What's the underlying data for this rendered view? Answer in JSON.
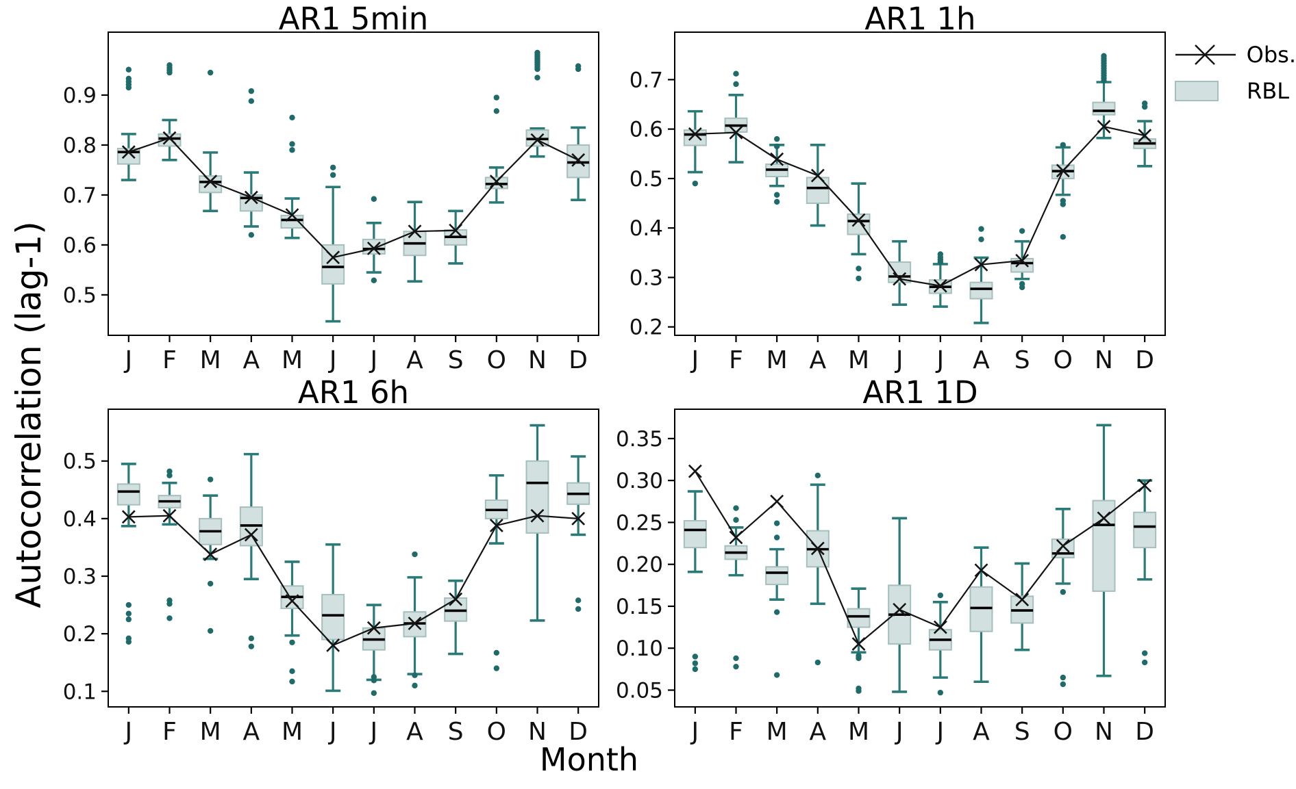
{
  "figure": {
    "ylabel": "Autocorrelation (lag-1)",
    "xlabel": "Month",
    "months": [
      "J",
      "F",
      "M",
      "A",
      "M",
      "J",
      "J",
      "A",
      "S",
      "O",
      "N",
      "D"
    ],
    "legend": [
      {
        "label": "Obs.",
        "marker": "x-line"
      },
      {
        "label": "RBL",
        "marker": "filled-box"
      }
    ]
  },
  "colors": {
    "teal": "#2a7a78",
    "outlier": "#1f6b69",
    "box_fill": "#d2e0df",
    "box_edge": "#a4bfbd",
    "median": "#000000",
    "obs": "#141414",
    "ink": "#111111"
  },
  "chart_data": [
    {
      "type": "boxplot+line",
      "title": "AR1 5min",
      "ylim": [
        0.419,
        1.026
      ],
      "yticks": [
        "0.5",
        "0.6",
        "0.7",
        "0.8",
        "0.9"
      ],
      "legend_series": [
        "Obs.",
        "RBL"
      ],
      "obs": [
        0.786,
        0.814,
        0.727,
        0.695,
        0.66,
        0.575,
        0.593,
        0.627,
        0.629,
        0.727,
        0.81,
        0.77
      ],
      "boxes": [
        {
          "lo": 0.73,
          "q1": 0.762,
          "med": 0.786,
          "q3": 0.793,
          "hi": 0.822,
          "outliers": [
            0.915,
            0.921,
            0.927,
            0.933,
            0.951
          ]
        },
        {
          "lo": 0.77,
          "q1": 0.798,
          "med": 0.813,
          "q3": 0.822,
          "hi": 0.85,
          "outliers": [
            0.945,
            0.95,
            0.955,
            0.96
          ]
        },
        {
          "lo": 0.668,
          "q1": 0.705,
          "med": 0.726,
          "q3": 0.738,
          "hi": 0.785,
          "outliers": [
            0.945
          ]
        },
        {
          "lo": 0.637,
          "q1": 0.668,
          "med": 0.694,
          "q3": 0.7,
          "hi": 0.745,
          "outliers": [
            0.888,
            0.908,
            0.62
          ]
        },
        {
          "lo": 0.614,
          "q1": 0.634,
          "med": 0.65,
          "q3": 0.659,
          "hi": 0.693,
          "outliers": [
            0.855,
            0.802,
            0.79
          ]
        },
        {
          "lo": 0.447,
          "q1": 0.522,
          "med": 0.556,
          "q3": 0.6,
          "hi": 0.716,
          "outliers": [
            0.74,
            0.755
          ]
        },
        {
          "lo": 0.545,
          "q1": 0.582,
          "med": 0.592,
          "q3": 0.611,
          "hi": 0.644,
          "outliers": [
            0.692,
            0.529
          ]
        },
        {
          "lo": 0.527,
          "q1": 0.579,
          "med": 0.603,
          "q3": 0.627,
          "hi": 0.686,
          "outliers": []
        },
        {
          "lo": 0.563,
          "q1": 0.6,
          "med": 0.616,
          "q3": 0.63,
          "hi": 0.668,
          "outliers": []
        },
        {
          "lo": 0.685,
          "q1": 0.713,
          "med": 0.722,
          "q3": 0.735,
          "hi": 0.755,
          "outliers": [
            0.868,
            0.895
          ]
        },
        {
          "lo": 0.777,
          "q1": 0.798,
          "med": 0.812,
          "q3": 0.83,
          "hi": 0.833,
          "outliers": [
            0.935,
            0.952,
            0.957,
            0.961,
            0.965,
            0.969,
            0.973,
            0.977,
            0.981,
            0.985
          ]
        },
        {
          "lo": 0.69,
          "q1": 0.735,
          "med": 0.765,
          "q3": 0.8,
          "hi": 0.835,
          "outliers": [
            0.952,
            0.958
          ]
        }
      ]
    },
    {
      "type": "boxplot+line",
      "title": "AR1 1h",
      "ylim": [
        0.183,
        0.796
      ],
      "yticks": [
        "0.2",
        "0.3",
        "0.4",
        "0.5",
        "0.6",
        "0.7"
      ],
      "legend_series": [
        "Obs.",
        "RBL"
      ],
      "obs": [
        0.59,
        0.593,
        0.539,
        0.506,
        0.416,
        0.297,
        0.283,
        0.326,
        0.334,
        0.516,
        0.605,
        0.587
      ],
      "boxes": [
        {
          "lo": 0.513,
          "q1": 0.567,
          "med": 0.589,
          "q3": 0.598,
          "hi": 0.636,
          "outliers": [
            0.49
          ]
        },
        {
          "lo": 0.533,
          "q1": 0.594,
          "med": 0.607,
          "q3": 0.622,
          "hi": 0.669,
          "outliers": [
            0.691,
            0.712
          ]
        },
        {
          "lo": 0.485,
          "q1": 0.504,
          "med": 0.518,
          "q3": 0.529,
          "hi": 0.568,
          "outliers": [
            0.58,
            0.565,
            0.467,
            0.453
          ]
        },
        {
          "lo": 0.405,
          "q1": 0.45,
          "med": 0.481,
          "q3": 0.502,
          "hi": 0.568,
          "outliers": []
        },
        {
          "lo": 0.347,
          "q1": 0.387,
          "med": 0.414,
          "q3": 0.428,
          "hi": 0.49,
          "outliers": [
            0.318,
            0.298
          ]
        },
        {
          "lo": 0.245,
          "q1": 0.29,
          "med": 0.302,
          "q3": 0.331,
          "hi": 0.373,
          "outliers": []
        },
        {
          "lo": 0.241,
          "q1": 0.268,
          "med": 0.281,
          "q3": 0.295,
          "hi": 0.327,
          "outliers": [
            0.331,
            0.336,
            0.341,
            0.347
          ]
        },
        {
          "lo": 0.208,
          "q1": 0.257,
          "med": 0.277,
          "q3": 0.29,
          "hi": 0.34,
          "outliers": [
            0.377,
            0.398
          ]
        },
        {
          "lo": 0.297,
          "q1": 0.311,
          "med": 0.329,
          "q3": 0.338,
          "hi": 0.373,
          "outliers": [
            0.394,
            0.287,
            0.28
          ]
        },
        {
          "lo": 0.467,
          "q1": 0.5,
          "med": 0.515,
          "q3": 0.527,
          "hi": 0.563,
          "outliers": [
            0.568,
            0.455,
            0.448,
            0.382
          ]
        },
        {
          "lo": 0.582,
          "q1": 0.629,
          "med": 0.637,
          "q3": 0.654,
          "hi": 0.695,
          "outliers": [
            0.698,
            0.703,
            0.708,
            0.713,
            0.718,
            0.723,
            0.728,
            0.733,
            0.738,
            0.743,
            0.748
          ]
        },
        {
          "lo": 0.525,
          "q1": 0.561,
          "med": 0.571,
          "q3": 0.58,
          "hi": 0.616,
          "outliers": [
            0.645,
            0.652
          ]
        }
      ]
    },
    {
      "type": "boxplot+line",
      "title": "AR1 6h",
      "ylim": [
        0.073,
        0.59
      ],
      "yticks": [
        "0.1",
        "0.2",
        "0.3",
        "0.4",
        "0.5"
      ],
      "legend_series": [
        "Obs.",
        "RBL"
      ],
      "obs": [
        0.403,
        0.405,
        0.338,
        0.372,
        0.257,
        0.18,
        0.21,
        0.218,
        0.26,
        0.388,
        0.405,
        0.4
      ],
      "boxes": [
        {
          "lo": 0.387,
          "q1": 0.424,
          "med": 0.447,
          "q3": 0.46,
          "hi": 0.495,
          "outliers": [
            0.25,
            0.235,
            0.225,
            0.192,
            0.186
          ]
        },
        {
          "lo": 0.39,
          "q1": 0.419,
          "med": 0.43,
          "q3": 0.44,
          "hi": 0.462,
          "outliers": [
            0.482,
            0.475,
            0.258,
            0.252,
            0.227
          ]
        },
        {
          "lo": 0.33,
          "q1": 0.355,
          "med": 0.378,
          "q3": 0.4,
          "hi": 0.44,
          "outliers": [
            0.468,
            0.287,
            0.205
          ]
        },
        {
          "lo": 0.295,
          "q1": 0.353,
          "med": 0.388,
          "q3": 0.42,
          "hi": 0.512,
          "outliers": [
            0.192,
            0.178
          ]
        },
        {
          "lo": 0.197,
          "q1": 0.244,
          "med": 0.264,
          "q3": 0.283,
          "hi": 0.325,
          "outliers": [
            0.185,
            0.135,
            0.117
          ]
        },
        {
          "lo": 0.101,
          "q1": 0.19,
          "med": 0.232,
          "q3": 0.268,
          "hi": 0.355,
          "outliers": []
        },
        {
          "lo": 0.12,
          "q1": 0.172,
          "med": 0.19,
          "q3": 0.21,
          "hi": 0.25,
          "outliers": [
            0.125,
            0.119,
            0.097
          ]
        },
        {
          "lo": 0.13,
          "q1": 0.195,
          "med": 0.218,
          "q3": 0.238,
          "hi": 0.298,
          "outliers": [
            0.338,
            0.128,
            0.11
          ]
        },
        {
          "lo": 0.165,
          "q1": 0.222,
          "med": 0.24,
          "q3": 0.262,
          "hi": 0.292,
          "outliers": []
        },
        {
          "lo": 0.357,
          "q1": 0.4,
          "med": 0.415,
          "q3": 0.432,
          "hi": 0.475,
          "outliers": [
            0.167,
            0.14
          ]
        },
        {
          "lo": 0.223,
          "q1": 0.375,
          "med": 0.462,
          "q3": 0.5,
          "hi": 0.562,
          "outliers": []
        },
        {
          "lo": 0.372,
          "q1": 0.425,
          "med": 0.443,
          "q3": 0.462,
          "hi": 0.508,
          "outliers": [
            0.258,
            0.243
          ]
        }
      ]
    },
    {
      "type": "boxplot+line",
      "title": "AR1 1D",
      "ylim": [
        0.03,
        0.385
      ],
      "yticks": [
        "0.05",
        "0.10",
        "0.15",
        "0.20",
        "0.25",
        "0.30",
        "0.35"
      ],
      "legend_series": [
        "Obs.",
        "RBL"
      ],
      "obs": [
        0.311,
        0.232,
        0.275,
        0.219,
        0.105,
        0.146,
        0.125,
        0.193,
        0.158,
        0.222,
        0.255,
        0.294
      ],
      "boxes": [
        {
          "lo": 0.191,
          "q1": 0.22,
          "med": 0.241,
          "q3": 0.252,
          "hi": 0.287,
          "outliers": [
            0.09,
            0.082,
            0.075
          ]
        },
        {
          "lo": 0.187,
          "q1": 0.206,
          "med": 0.214,
          "q3": 0.222,
          "hi": 0.244,
          "outliers": [
            0.267,
            0.253,
            0.088,
            0.078
          ]
        },
        {
          "lo": 0.158,
          "q1": 0.176,
          "med": 0.19,
          "q3": 0.197,
          "hi": 0.218,
          "outliers": [
            0.249,
            0.232,
            0.143,
            0.068
          ]
        },
        {
          "lo": 0.153,
          "q1": 0.197,
          "med": 0.218,
          "q3": 0.24,
          "hi": 0.295,
          "outliers": [
            0.306,
            0.083
          ]
        },
        {
          "lo": 0.095,
          "q1": 0.125,
          "med": 0.138,
          "q3": 0.147,
          "hi": 0.171,
          "outliers": [
            0.091,
            0.088,
            0.052,
            0.049
          ]
        },
        {
          "lo": 0.048,
          "q1": 0.105,
          "med": 0.14,
          "q3": 0.175,
          "hi": 0.255,
          "outliers": []
        },
        {
          "lo": 0.065,
          "q1": 0.098,
          "med": 0.11,
          "q3": 0.122,
          "hi": 0.155,
          "outliers": [
            0.163,
            0.047
          ]
        },
        {
          "lo": 0.06,
          "q1": 0.12,
          "med": 0.148,
          "q3": 0.173,
          "hi": 0.22,
          "outliers": []
        },
        {
          "lo": 0.098,
          "q1": 0.13,
          "med": 0.145,
          "q3": 0.162,
          "hi": 0.201,
          "outliers": []
        },
        {
          "lo": 0.177,
          "q1": 0.208,
          "med": 0.213,
          "q3": 0.23,
          "hi": 0.266,
          "outliers": [
            0.167,
            0.065,
            0.057
          ]
        },
        {
          "lo": 0.067,
          "q1": 0.168,
          "med": 0.247,
          "q3": 0.276,
          "hi": 0.366,
          "outliers": []
        },
        {
          "lo": 0.182,
          "q1": 0.22,
          "med": 0.245,
          "q3": 0.262,
          "hi": 0.3,
          "outliers": [
            0.094,
            0.083
          ]
        }
      ]
    }
  ]
}
